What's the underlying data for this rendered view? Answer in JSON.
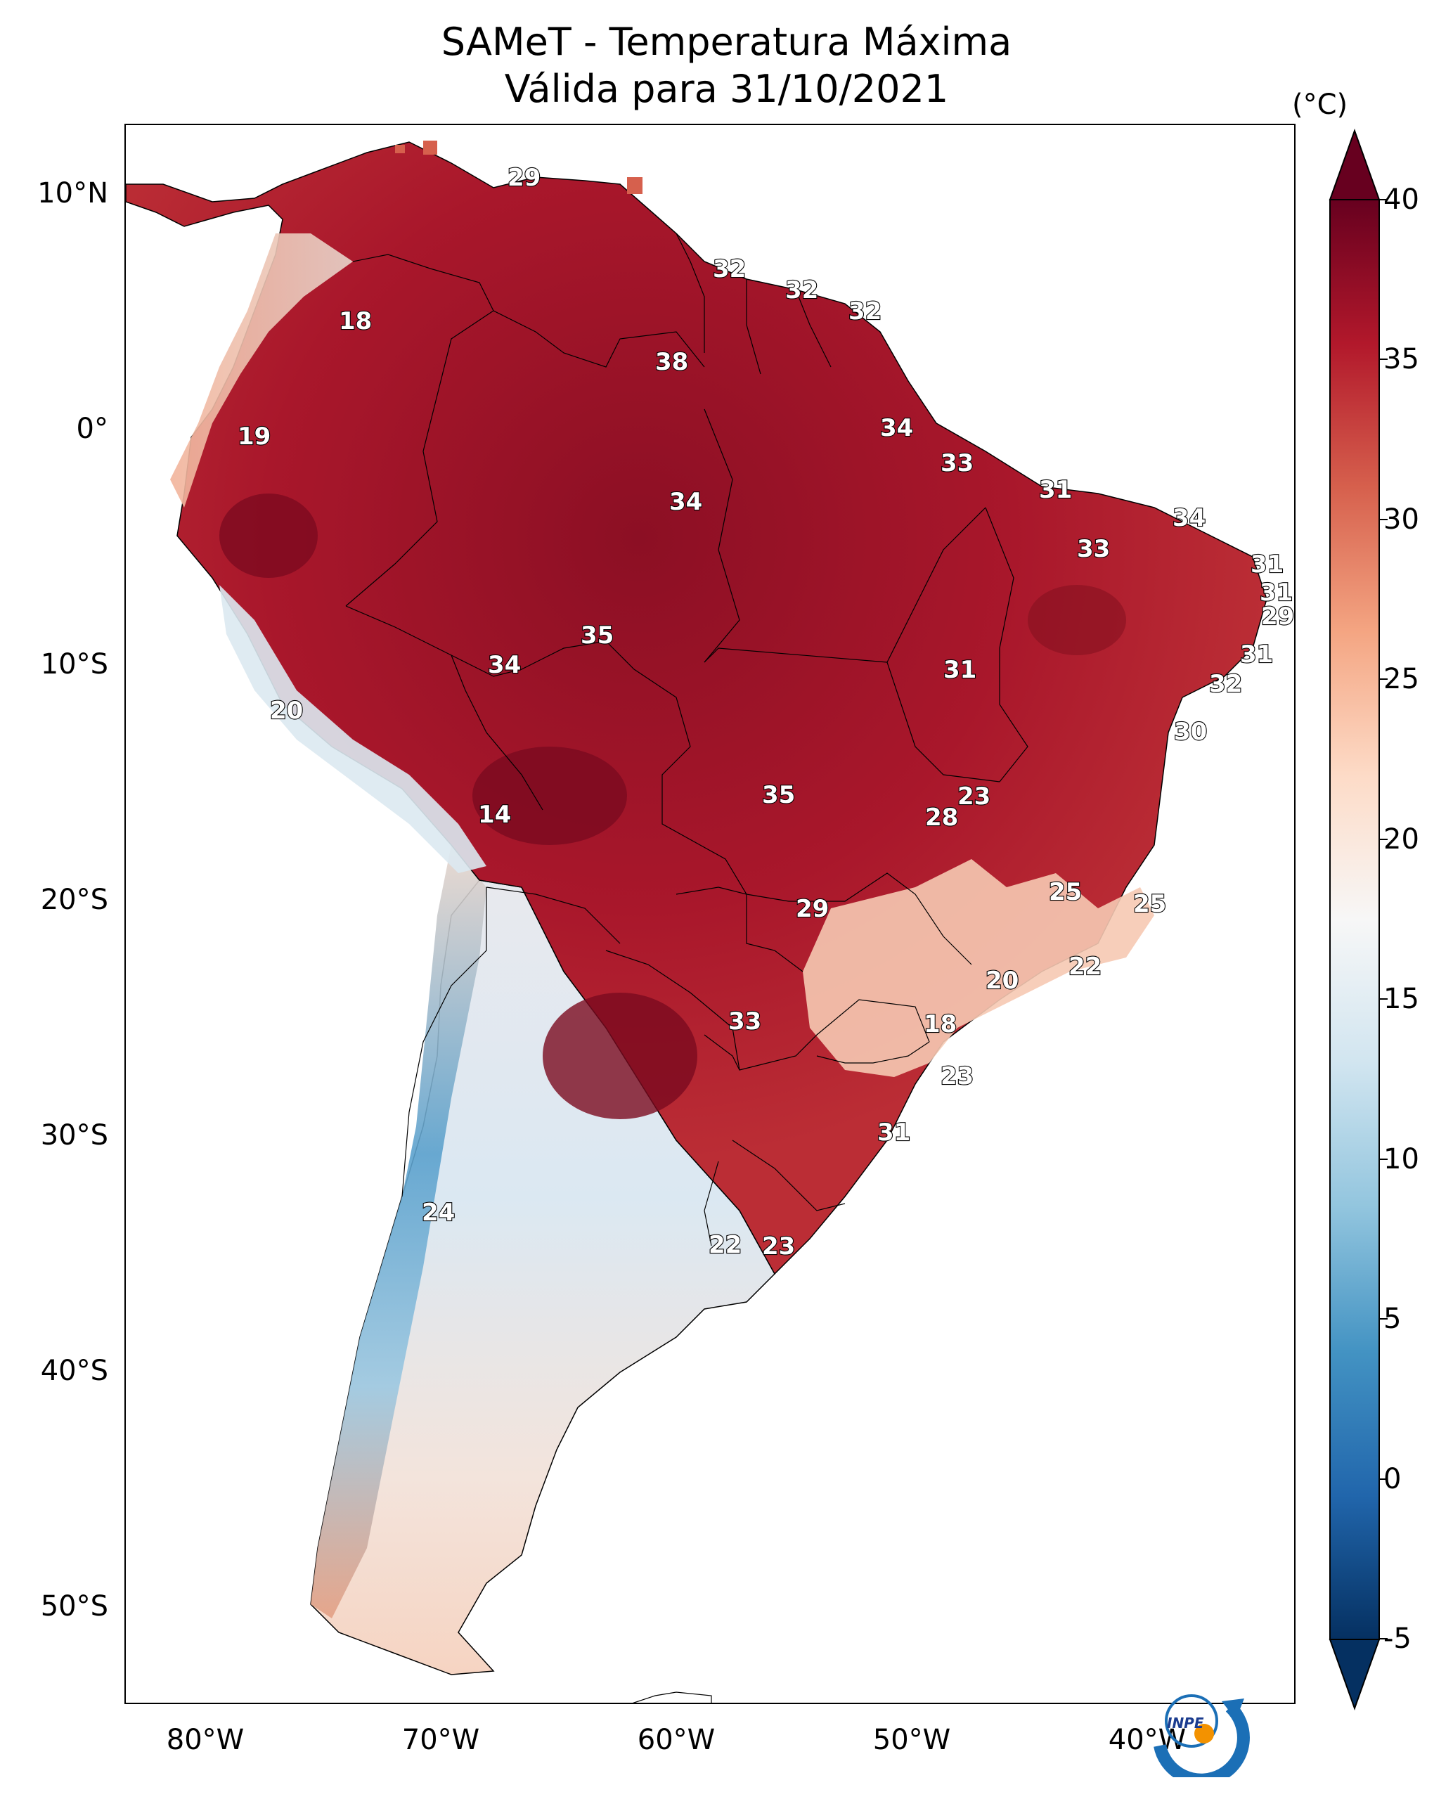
{
  "title": {
    "line1": "SAMeT - Temperatura Máxima",
    "line2": "Válida para 31/10/2021"
  },
  "axes": {
    "lat_ticks": [
      "10°N",
      "0°",
      "10°S",
      "20°S",
      "30°S",
      "40°S",
      "50°S"
    ],
    "lon_ticks": [
      "80°W",
      "70°W",
      "60°W",
      "50°W",
      "40°W"
    ]
  },
  "colorbar": {
    "unit": "(°C)",
    "ticks": [
      "40",
      "35",
      "30",
      "25",
      "20",
      "15",
      "10",
      "5",
      "0",
      "-5"
    ],
    "range": [
      -5,
      40
    ],
    "colormap": "RdBu_r",
    "colors": {
      "dark_red": "#67001f",
      "red": "#b2182b",
      "light_red": "#d6604d",
      "salmon": "#f4a582",
      "pale_red": "#fddbc7",
      "white": "#f7f7f7",
      "pale_blue": "#d1e5f0",
      "light_blue": "#92c5de",
      "blue": "#4393c3",
      "mid_blue": "#2166ac",
      "dark_blue": "#053061"
    }
  },
  "map_labels": [
    "29",
    "32",
    "32",
    "32",
    "18",
    "38",
    "19",
    "34",
    "34",
    "33",
    "31",
    "34",
    "33",
    "31",
    "31",
    "29",
    "35",
    "34",
    "31",
    "31",
    "32",
    "20",
    "30",
    "23",
    "35",
    "28",
    "14",
    "25",
    "25",
    "29",
    "22",
    "20",
    "33",
    "18",
    "23",
    "31",
    "24",
    "22",
    "23"
  ],
  "logo": {
    "text": "INPE",
    "icon": "inpe-logo-icon"
  }
}
